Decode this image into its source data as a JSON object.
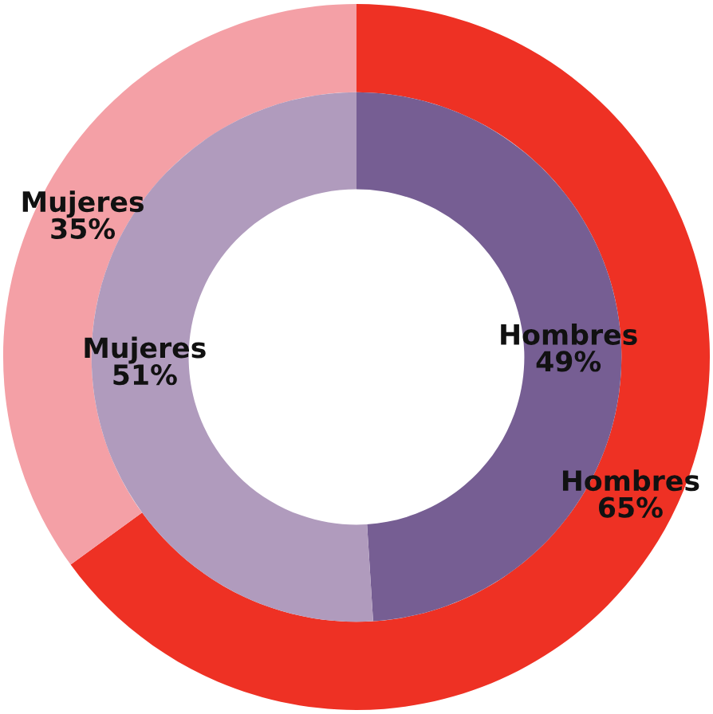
{
  "chart_data": {
    "type": "donut",
    "categories": [
      "Hombres",
      "Mujeres"
    ],
    "series": [
      {
        "values": [
          65,
          35
        ],
        "value_labels": [
          "65%",
          "35%"
        ],
        "colors": [
          "#ee3124",
          "#f4a0a6"
        ]
      },
      {
        "values": [
          49,
          51
        ],
        "value_labels": [
          "49%",
          "51%"
        ],
        "colors": [
          "#765e93",
          "#b09bbd"
        ]
      }
    ]
  }
}
